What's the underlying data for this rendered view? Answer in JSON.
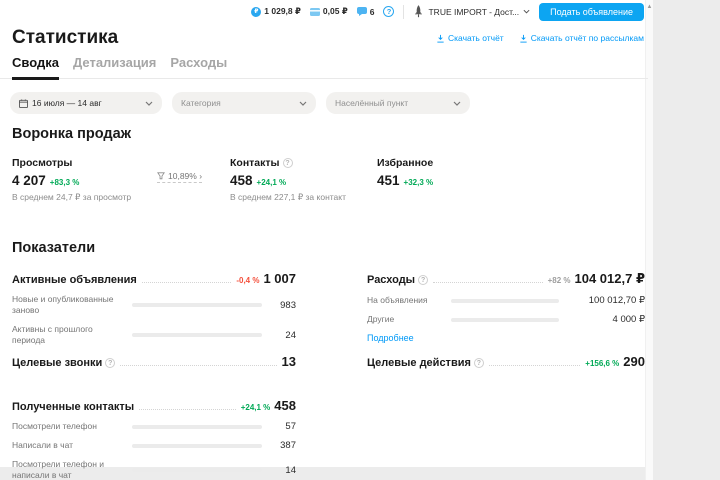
{
  "colors": {
    "accent_blue": "#0099f7",
    "positive_green": "#00a956",
    "negative_red": "#f4503c",
    "bar_blue": "#0099f7",
    "pill_bg": "#f2f1ef"
  },
  "icons": {
    "help_glyph": "?",
    "ruble_glyph": "₽",
    "scroll_up_glyph": "▲"
  },
  "topbar": {
    "wallet_balance": "1 029,8 ₽",
    "bonus_balance": "0,05 ₽",
    "messages_count": "6",
    "profile_name": "TRUE IMPORT - Дост...",
    "post_ad_button": "Подать объявление"
  },
  "header": {
    "title": "Статистика",
    "download_report_link": "Скачать отчёт",
    "download_mailing_report_link": "Скачать отчёт по рассылкам"
  },
  "tabs": {
    "summary": "Сводка",
    "details": "Детализация",
    "expenses": "Расходы"
  },
  "filters": {
    "date_range": "16 июля — 14 авг",
    "category": "Категория",
    "location": "Населённый пункт"
  },
  "funnel": {
    "section_title": "Воронка продаж",
    "views_label": "Просмотры",
    "views_value": "4 207",
    "views_change": "+83,3 %",
    "views_note": "В среднем 24,7 ₽ за просмотр",
    "conversion": "10,89% ›",
    "contacts_label": "Контакты",
    "contacts_value": "458",
    "contacts_change": "+24,1 %",
    "contacts_note": "В среднем 227,1 ₽ за контакт",
    "favorites_label": "Избранное",
    "favorites_value": "451",
    "favorites_change": "+32,3 %"
  },
  "indicators": {
    "section_title": "Показатели",
    "active_ads": {
      "title": "Активные объявления",
      "change": "-0,4 %",
      "value": "1 007",
      "rows": [
        {
          "label": "Новые и опубликованные заново",
          "value": "983",
          "pct": 100
        },
        {
          "label": "Активны с прошлого периода",
          "value": "24",
          "pct": 3
        }
      ]
    },
    "expenses": {
      "title": "Расходы",
      "change": "+82 %",
      "value": "104 012,7 ₽",
      "rows": [
        {
          "label": "На объявления",
          "value": "100 012,70 ₽",
          "pct": 97
        },
        {
          "label": "Другие",
          "value": "4 000 ₽",
          "pct": 4
        }
      ],
      "more_link": "Подробнее"
    },
    "target_calls": {
      "title": "Целевые звонки",
      "value": "13"
    },
    "target_actions": {
      "title": "Целевые действия",
      "change": "+156,6 %",
      "value": "290"
    },
    "received_contacts": {
      "title": "Полученные контакты",
      "change": "+24,1 %",
      "value": "458",
      "rows": [
        {
          "label": "Посмотрели телефон",
          "value": "57",
          "pct": 15
        },
        {
          "label": "Написали в чат",
          "value": "387",
          "pct": 94
        },
        {
          "label": "Посмотрели телефон и написали в чат",
          "value": "14",
          "pct": 4
        }
      ]
    }
  }
}
